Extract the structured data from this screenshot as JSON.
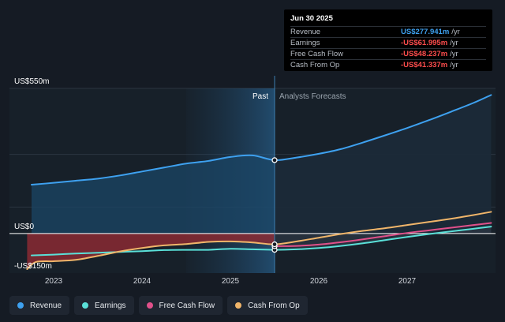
{
  "tooltip": {
    "date": "Jun 30 2025",
    "rows": [
      {
        "label": "Revenue",
        "value": "US$277.941m",
        "unit": "/yr",
        "color": "#3ea1f0"
      },
      {
        "label": "Earnings",
        "value": "-US$61.995m",
        "unit": "/yr",
        "color": "#ff4d4d"
      },
      {
        "label": "Free Cash Flow",
        "value": "-US$48.237m",
        "unit": "/yr",
        "color": "#ff4d4d"
      },
      {
        "label": "Cash From Op",
        "value": "-US$41.337m",
        "unit": "/yr",
        "color": "#ff4d4d"
      }
    ]
  },
  "legend": [
    {
      "label": "Revenue",
      "color": "#3ea1f0"
    },
    {
      "label": "Earnings",
      "color": "#5ae0d8"
    },
    {
      "label": "Free Cash Flow",
      "color": "#e0508a"
    },
    {
      "label": "Cash From Op",
      "color": "#f0b56a"
    }
  ],
  "chart_data": {
    "type": "line",
    "title": "",
    "y_axis_labels": [
      "US$550m",
      "US$0",
      "-US$150m"
    ],
    "ylim": [
      -150,
      550
    ],
    "xlim": [
      2022.5,
      2028.0
    ],
    "x_ticks": [
      "2023",
      "2024",
      "2025",
      "2026",
      "2027"
    ],
    "x_tick_values": [
      2023,
      2024,
      2025,
      2026,
      2027
    ],
    "past_label": "Past",
    "forecast_label": "Analysts Forecasts",
    "divider_x": 2025.5,
    "highlight_start_x": 2024.5,
    "series": [
      {
        "name": "Revenue",
        "color": "#3ea1f0",
        "x": [
          2022.75,
          2023.0,
          2023.25,
          2023.5,
          2023.75,
          2024.0,
          2024.25,
          2024.5,
          2024.75,
          2025.0,
          2025.25,
          2025.5,
          2025.75,
          2026.0,
          2026.25,
          2026.5,
          2026.75,
          2027.0,
          2027.25,
          2027.5,
          2027.75,
          2027.95
        ],
        "values": [
          185,
          192,
          200,
          208,
          220,
          235,
          250,
          265,
          275,
          290,
          296,
          278,
          288,
          302,
          320,
          345,
          372,
          400,
          430,
          462,
          495,
          525
        ]
      },
      {
        "name": "Earnings",
        "color": "#5ae0d8",
        "x": [
          2022.75,
          2023.0,
          2023.25,
          2023.5,
          2023.75,
          2024.0,
          2024.25,
          2024.5,
          2024.75,
          2025.0,
          2025.25,
          2025.5,
          2025.75,
          2026.0,
          2026.25,
          2026.5,
          2026.75,
          2027.0,
          2027.25,
          2027.5,
          2027.75,
          2027.95
        ],
        "values": [
          -83,
          -80,
          -76,
          -73,
          -70,
          -67,
          -63,
          -62,
          -62,
          -58,
          -60,
          -62,
          -60,
          -55,
          -47,
          -37,
          -25,
          -13,
          -2,
          8,
          18,
          26
        ]
      },
      {
        "name": "Free Cash Flow",
        "color": "#e0508a",
        "x": [
          2025.5,
          2025.75,
          2026.0,
          2026.25,
          2026.5,
          2026.75,
          2027.0,
          2027.25,
          2027.5,
          2027.75,
          2027.95
        ],
        "values": [
          -48,
          -47,
          -42,
          -33,
          -22,
          -10,
          2,
          12,
          22,
          32,
          40
        ]
      },
      {
        "name": "Cash From Op",
        "color": "#f0b56a",
        "x": [
          2022.7,
          2022.8,
          2023.0,
          2023.25,
          2023.5,
          2023.75,
          2024.0,
          2024.25,
          2024.5,
          2024.75,
          2025.0,
          2025.25,
          2025.5,
          2025.75,
          2026.0,
          2026.25,
          2026.5,
          2026.75,
          2027.0,
          2027.25,
          2027.5,
          2027.75,
          2027.95
        ],
        "values": [
          -135,
          -108,
          -105,
          -100,
          -85,
          -68,
          -55,
          -45,
          -40,
          -32,
          -30,
          -34,
          -41,
          -30,
          -16,
          -2,
          10,
          20,
          32,
          44,
          56,
          70,
          82
        ]
      }
    ]
  }
}
